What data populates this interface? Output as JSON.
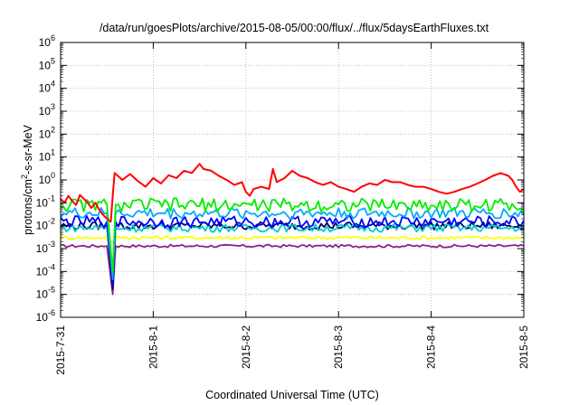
{
  "chart_data": {
    "type": "line",
    "title": "/data/run/goesPlots/archive/2015-08-05/00:00/flux/../flux/5daysEarthFluxes.txt",
    "xlabel": "Coordinated Universal Time (UTC)",
    "ylabel_parts": [
      "protons/cm",
      "2",
      "-s-sr-MeV"
    ],
    "y_scale": "log",
    "ylim": [
      1e-06,
      1000000.0
    ],
    "xlim": [
      "2015-07-31",
      "2015-08-05"
    ],
    "x_ticks": [
      "2015-7-31",
      "2015-8-1",
      "2015-8-2",
      "2015-8-3",
      "2015-8-4",
      "2015-8-5"
    ],
    "y_ticks": [
      {
        "base": "10",
        "exp": "-6"
      },
      {
        "base": "10",
        "exp": "-5"
      },
      {
        "base": "10",
        "exp": "-4"
      },
      {
        "base": "10",
        "exp": "-3"
      },
      {
        "base": "10",
        "exp": "-2"
      },
      {
        "base": "10",
        "exp": "-1"
      },
      {
        "base": "10",
        "exp": "0"
      },
      {
        "base": "10",
        "exp": "1"
      },
      {
        "base": "10",
        "exp": "2"
      },
      {
        "base": "10",
        "exp": "3"
      },
      {
        "base": "10",
        "exp": "4"
      },
      {
        "base": "10",
        "exp": "5"
      },
      {
        "base": "10",
        "exp": "6"
      }
    ],
    "grid": true,
    "legend": "none",
    "series": [
      {
        "color": "#ff0000",
        "points": [
          [
            "2015-07-31T00:00",
            0.15
          ],
          [
            "2015-07-31T01:00",
            0.1
          ],
          [
            "2015-07-31T02:00",
            0.2
          ],
          [
            "2015-07-31T03:00",
            0.12
          ],
          [
            "2015-07-31T04:00",
            0.08
          ],
          [
            "2015-07-31T05:00",
            0.22
          ],
          [
            "2015-07-31T06:00",
            0.15
          ],
          [
            "2015-07-31T07:00",
            0.1
          ],
          [
            "2015-07-31T08:00",
            0.06
          ],
          [
            "2015-07-31T09:00",
            0.1
          ],
          [
            "2015-07-31T10:00",
            0.05
          ],
          [
            "2015-07-31T11:00",
            0.03
          ],
          [
            "2015-07-31T12:00",
            0.02
          ],
          [
            "2015-07-31T13:00",
            0.015
          ],
          [
            "2015-07-31T13:30",
            0.2
          ],
          [
            "2015-07-31T14:00",
            2.0
          ],
          [
            "2015-07-31T16:00",
            1.0
          ],
          [
            "2015-07-31T18:00",
            1.8
          ],
          [
            "2015-07-31T20:00",
            0.9
          ],
          [
            "2015-07-31T22:00",
            0.5
          ],
          [
            "2015-08-01T00:00",
            1.2
          ],
          [
            "2015-08-01T02:00",
            0.7
          ],
          [
            "2015-08-01T04:00",
            1.6
          ],
          [
            "2015-08-01T06:00",
            1.2
          ],
          [
            "2015-08-01T08:00",
            2.5
          ],
          [
            "2015-08-01T10:00",
            2.0
          ],
          [
            "2015-08-01T12:00",
            5.0
          ],
          [
            "2015-08-01T13:00",
            3.0
          ],
          [
            "2015-08-01T15:00",
            2.5
          ],
          [
            "2015-08-01T17:00",
            1.5
          ],
          [
            "2015-08-01T19:00",
            1.0
          ],
          [
            "2015-08-01T21:00",
            0.6
          ],
          [
            "2015-08-01T23:00",
            0.8
          ],
          [
            "2015-08-02T00:00",
            0.3
          ],
          [
            "2015-08-02T01:00",
            0.2
          ],
          [
            "2015-08-02T02:00",
            0.4
          ],
          [
            "2015-08-02T04:00",
            0.5
          ],
          [
            "2015-08-02T06:00",
            0.4
          ],
          [
            "2015-08-02T07:00",
            3.0
          ],
          [
            "2015-08-02T08:00",
            0.8
          ],
          [
            "2015-08-02T10:00",
            1.2
          ],
          [
            "2015-08-02T12:00",
            2.5
          ],
          [
            "2015-08-02T14:00",
            1.5
          ],
          [
            "2015-08-02T16:00",
            1.2
          ],
          [
            "2015-08-02T18:00",
            0.8
          ],
          [
            "2015-08-02T20:00",
            0.6
          ],
          [
            "2015-08-02T22:00",
            0.8
          ],
          [
            "2015-08-03T00:00",
            0.5
          ],
          [
            "2015-08-03T02:00",
            0.4
          ],
          [
            "2015-08-03T04:00",
            0.3
          ],
          [
            "2015-08-03T06:00",
            0.5
          ],
          [
            "2015-08-03T08:00",
            0.7
          ],
          [
            "2015-08-03T10:00",
            0.6
          ],
          [
            "2015-08-03T12:00",
            1.0
          ],
          [
            "2015-08-03T14:00",
            0.8
          ],
          [
            "2015-08-03T16:00",
            0.8
          ],
          [
            "2015-08-03T18:00",
            0.6
          ],
          [
            "2015-08-03T20:00",
            0.5
          ],
          [
            "2015-08-03T22:00",
            0.5
          ],
          [
            "2015-08-04T00:00",
            0.4
          ],
          [
            "2015-08-04T02:00",
            0.3
          ],
          [
            "2015-08-04T04:00",
            0.25
          ],
          [
            "2015-08-04T06:00",
            0.3
          ],
          [
            "2015-08-04T08:00",
            0.4
          ],
          [
            "2015-08-04T10:00",
            0.5
          ],
          [
            "2015-08-04T12:00",
            0.7
          ],
          [
            "2015-08-04T14:00",
            1.0
          ],
          [
            "2015-08-04T16:00",
            1.5
          ],
          [
            "2015-08-04T18:00",
            2.0
          ],
          [
            "2015-08-04T20:00",
            1.5
          ],
          [
            "2015-08-04T21:00",
            1.0
          ],
          [
            "2015-08-04T22:00",
            0.5
          ],
          [
            "2015-08-04T23:00",
            0.3
          ],
          [
            "2015-08-05T00:00",
            0.4
          ]
        ]
      },
      {
        "color": "#00ee00",
        "base": 0.08,
        "spread": 0.6,
        "dip": 1e-05
      },
      {
        "color": "#00aaff",
        "base": 0.035,
        "spread": 0.5,
        "dip": 5e-06
      },
      {
        "color": "#0000ff",
        "base": 0.015,
        "spread": 0.5,
        "dip": 3e-06
      },
      {
        "color": "#00cccc",
        "base": 0.008,
        "spread": 0.35,
        "dip": 1e-05
      },
      {
        "color": "#000066",
        "base": 0.01,
        "spread": 0.35,
        "dip": 2e-06
      },
      {
        "color": "#ffff00",
        "base": 0.003,
        "spread": 0.15,
        "dip": 0.0001
      },
      {
        "color": "#882288",
        "base": 0.0013,
        "spread": 0.12,
        "dip": 2e-06
      }
    ]
  }
}
